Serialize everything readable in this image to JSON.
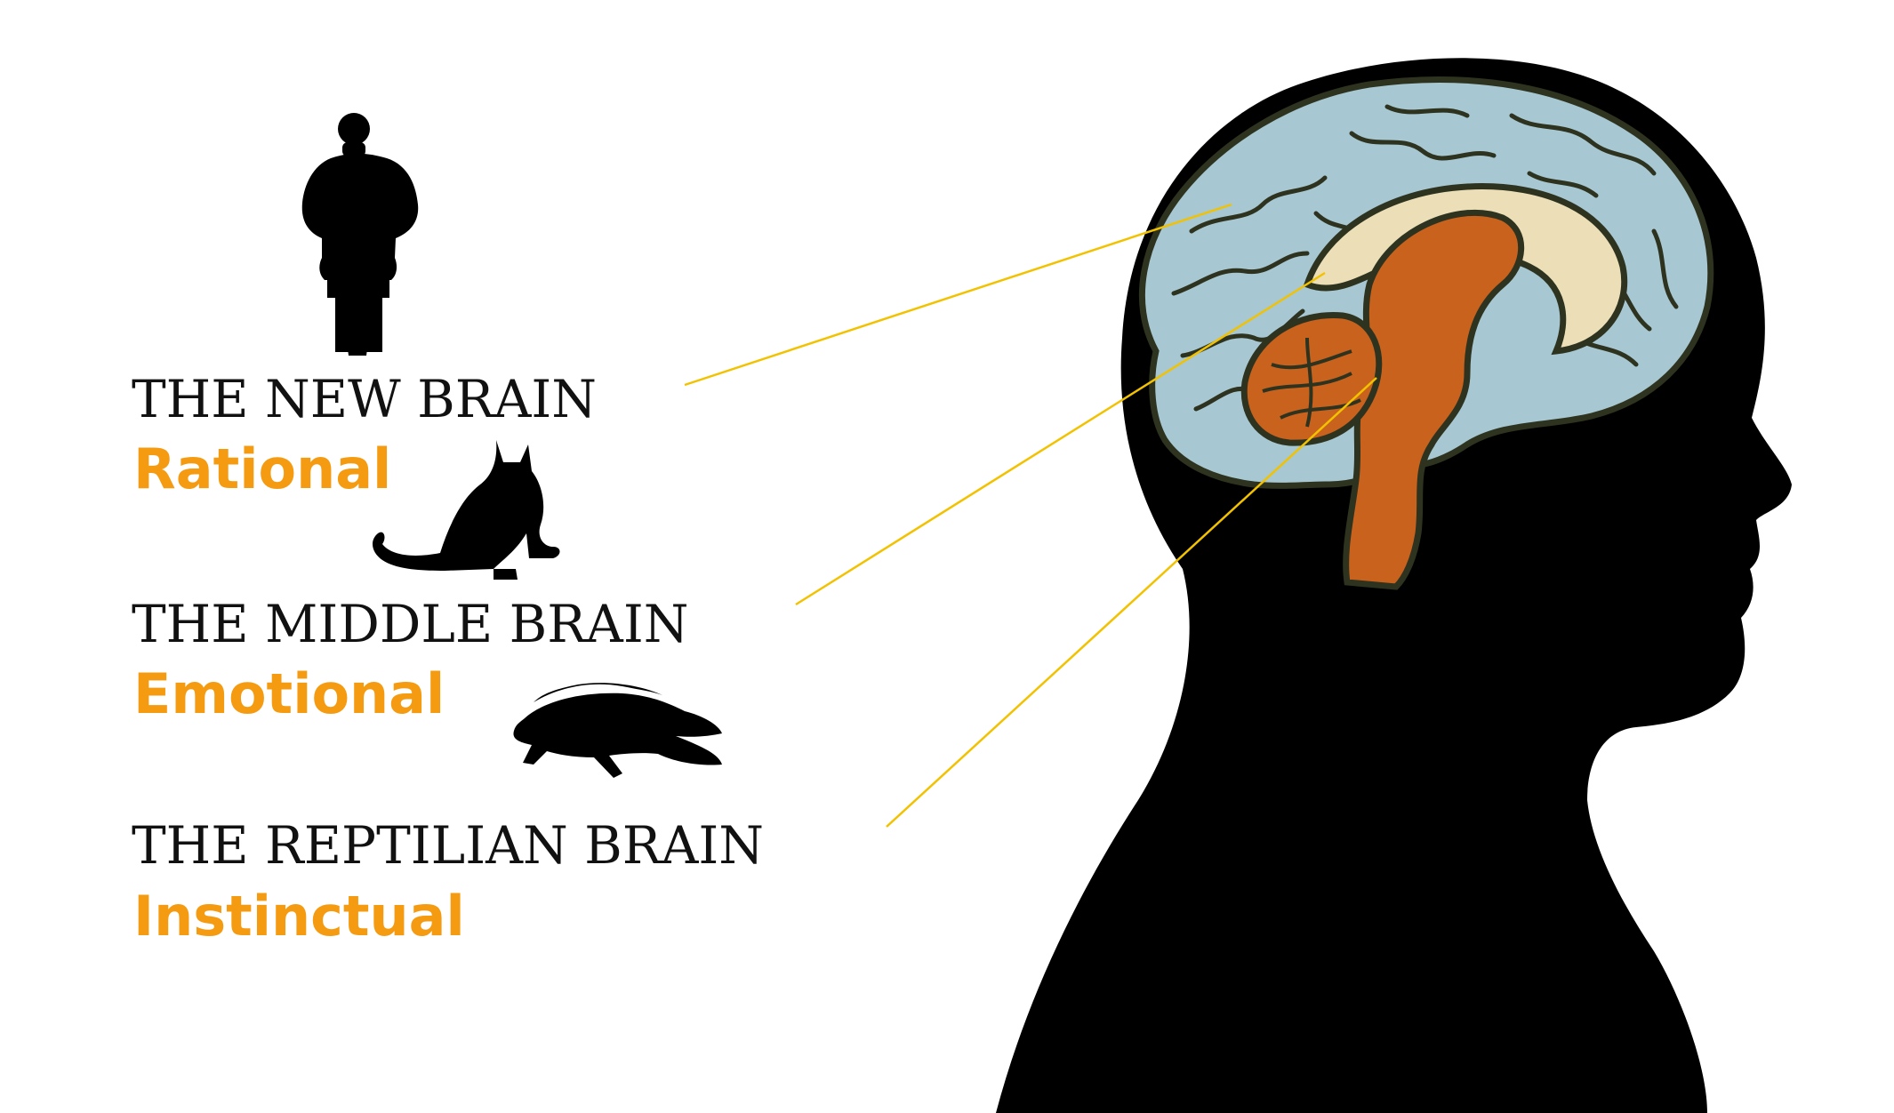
{
  "colors": {
    "accent": "#f59b12",
    "title_text": "#111111",
    "silhouette": "#000000",
    "cortex": "#a7c8d2",
    "limbic": "#ecdfb8",
    "brainstem": "#c9621d",
    "leader_line": "#f2c200"
  },
  "layers": [
    {
      "title": "THE NEW BRAIN",
      "subtitle": "Rational",
      "icon": "human-silhouette-icon"
    },
    {
      "title": "THE MIDDLE BRAIN",
      "subtitle": "Emotional",
      "icon": "cat-silhouette-icon"
    },
    {
      "title": "THE REPTILIAN BRAIN",
      "subtitle": "Instinctual",
      "icon": "crocodile-silhouette-icon"
    }
  ]
}
